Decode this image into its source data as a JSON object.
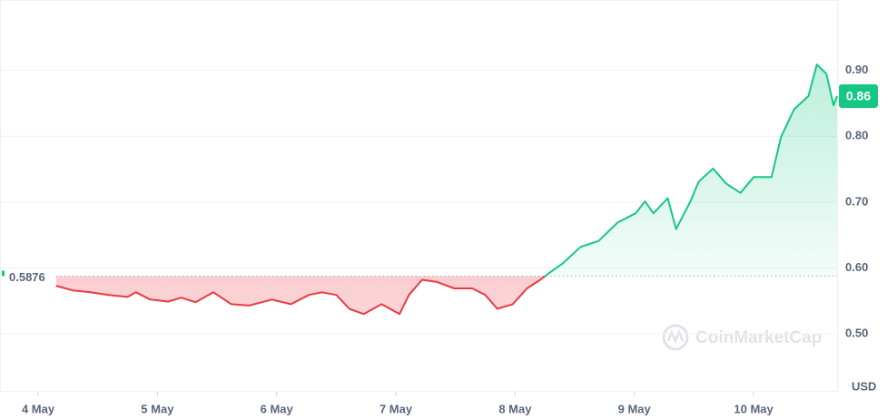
{
  "chart_data": {
    "type": "line",
    "x": [
      4.15,
      4.29,
      4.44,
      4.59,
      4.75,
      4.82,
      4.94,
      5.09,
      5.2,
      5.32,
      5.47,
      5.62,
      5.77,
      5.96,
      6.12,
      6.27,
      6.38,
      6.5,
      6.61,
      6.73,
      6.88,
      7.03,
      7.11,
      7.22,
      7.34,
      7.49,
      7.64,
      7.75,
      7.85,
      7.98,
      8.1,
      8.21,
      8.29,
      8.4,
      8.55,
      8.7,
      8.86,
      9.01,
      9.09,
      9.16,
      9.28,
      9.35,
      9.47,
      9.54,
      9.66,
      9.77,
      9.89,
      10.0,
      10.15,
      10.23,
      10.34,
      10.46,
      10.53,
      10.61,
      10.67,
      10.7
    ],
    "values": [
      0.573,
      0.566,
      0.563,
      0.559,
      0.556,
      0.563,
      0.552,
      0.549,
      0.555,
      0.548,
      0.563,
      0.545,
      0.543,
      0.552,
      0.545,
      0.559,
      0.563,
      0.559,
      0.538,
      0.53,
      0.545,
      0.53,
      0.559,
      0.582,
      0.579,
      0.569,
      0.569,
      0.559,
      0.538,
      0.545,
      0.569,
      0.582,
      0.593,
      0.607,
      0.632,
      0.641,
      0.669,
      0.683,
      0.701,
      0.683,
      0.706,
      0.659,
      0.701,
      0.731,
      0.751,
      0.728,
      0.714,
      0.738,
      0.738,
      0.799,
      0.841,
      0.861,
      0.909,
      0.895,
      0.847,
      0.861
    ],
    "baseline": 0.5876,
    "baseline_label": "0.5876",
    "last_price_label": "0.86",
    "up_color": "#16c784",
    "down_color": "#ea3943",
    "xlim": [
      3.68,
      10.7
    ],
    "xticks": [
      {
        "value": 4,
        "label": "4 May"
      },
      {
        "value": 5,
        "label": "5 May"
      },
      {
        "value": 6,
        "label": "6 May"
      },
      {
        "value": 7,
        "label": "7 May"
      },
      {
        "value": 8,
        "label": "8 May"
      },
      {
        "value": 9,
        "label": "9 May"
      },
      {
        "value": 10,
        "label": "10 May"
      }
    ],
    "ylim": [
      0.412,
      1.0
    ],
    "yticks": [
      {
        "value": 0.5,
        "label": "0.50"
      },
      {
        "value": 0.6,
        "label": "0.60"
      },
      {
        "value": 0.7,
        "label": "0.70"
      },
      {
        "value": 0.8,
        "label": "0.80"
      },
      {
        "value": 0.9,
        "label": "0.90"
      }
    ],
    "y_unit": "USD",
    "watermark": "CoinMarketCap",
    "grid": true
  }
}
